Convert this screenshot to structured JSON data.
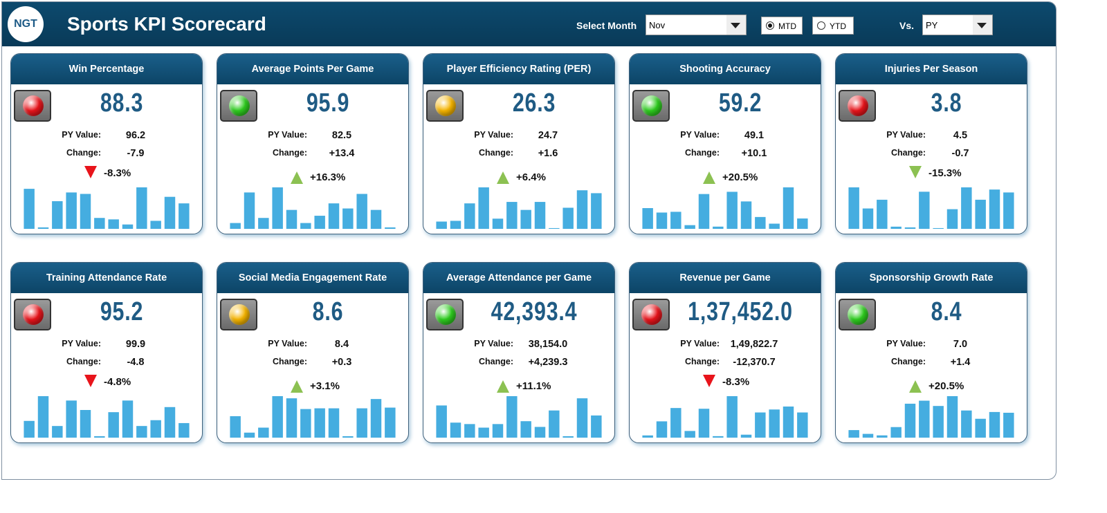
{
  "header": {
    "logo": "NGT",
    "title": "Sports KPI Scorecard",
    "month_label": "Select Month",
    "month": "Nov",
    "modes": [
      "MTD",
      "YTD"
    ],
    "selected_mode": 0,
    "vs_label": "Vs.",
    "vs": "PY"
  },
  "labels": {
    "py": "PY Value:",
    "change": "Change:"
  },
  "cards": [
    {
      "title": "Win Percentage",
      "value": "88.3",
      "py_value": "96.2",
      "change": "-7.9",
      "percent": "-8.3%",
      "light": "#e8141b",
      "arrow": "down",
      "arrow_color": "#e8141b",
      "bars": [
        55,
        2,
        38,
        50,
        48,
        15,
        13,
        6,
        57,
        11,
        44,
        35
      ]
    },
    {
      "title": "Average Points Per Game",
      "value": "95.9",
      "py_value": "82.5",
      "change": "+13.4",
      "percent": "+16.3%",
      "light": "#2ecc1f",
      "arrow": "up",
      "arrow_color": "#8cc152",
      "bars": [
        8,
        50,
        15,
        57,
        26,
        8,
        18,
        35,
        28,
        48,
        26,
        2
      ]
    },
    {
      "title": "Player Efficiency Rating (PER)",
      "value": "26.3",
      "py_value": "24.7",
      "change": "+1.6",
      "percent": "+6.4%",
      "light": "#f5b400",
      "arrow": "up",
      "arrow_color": "#8cc152",
      "bars": [
        10,
        11,
        35,
        57,
        14,
        37,
        26,
        37,
        1,
        29,
        53,
        49
      ]
    },
    {
      "title": "Shooting Accuracy",
      "value": "59.2",
      "py_value": "49.1",
      "change": "+10.1",
      "percent": "+20.5%",
      "light": "#2ecc1f",
      "arrow": "up",
      "arrow_color": "#8cc152",
      "bars": [
        28,
        22,
        23,
        5,
        47,
        3,
        50,
        37,
        16,
        7,
        56,
        14
      ]
    },
    {
      "title": "Injuries Per Season",
      "value": "3.8",
      "py_value": "4.5",
      "change": "-0.7",
      "percent": "-15.3%",
      "light": "#e8141b",
      "arrow": "down",
      "arrow_color": "#8cc152",
      "bars": [
        57,
        28,
        40,
        3,
        2,
        51,
        1,
        27,
        57,
        40,
        54,
        50
      ]
    },
    {
      "title": "Training Attendance Rate",
      "value": "95.2",
      "py_value": "99.9",
      "change": "-4.8",
      "percent": "-4.8%",
      "light": "#e8141b",
      "arrow": "down",
      "arrow_color": "#e8141b",
      "bars": [
        23,
        57,
        16,
        51,
        38,
        2,
        35,
        51,
        16,
        24,
        42,
        20
      ]
    },
    {
      "title": "Social Media Engagement Rate",
      "value": "8.6",
      "py_value": "8.4",
      "change": "+0.3",
      "percent": "+3.1%",
      "light": "#f5b400",
      "arrow": "up",
      "arrow_color": "#8cc152",
      "bars": [
        30,
        7,
        14,
        58,
        55,
        40,
        41,
        41,
        2,
        41,
        54,
        42
      ]
    },
    {
      "title": "Average Attendance per Game",
      "value": "42,393.4",
      "py_value": "38,154.0",
      "change": "+4,239.3",
      "percent": "+11.1%",
      "light": "#2ecc1f",
      "arrow": "up",
      "arrow_color": "#8cc152",
      "bars": [
        45,
        21,
        19,
        14,
        19,
        58,
        23,
        15,
        38,
        2,
        55,
        31
      ]
    },
    {
      "title": "Revenue per Game",
      "value": "1,37,452.0",
      "py_value": "1,49,822.7",
      "change": "-12,370.7",
      "percent": "-8.3%",
      "light": "#e8141b",
      "arrow": "down",
      "arrow_color": "#e8141b",
      "bars": [
        3,
        22,
        40,
        9,
        39,
        2,
        56,
        4,
        34,
        38,
        42,
        34
      ]
    },
    {
      "title": "Sponsorship Growth Rate",
      "value": "8.4",
      "py_value": "7.0",
      "change": "+1.4",
      "percent": "+20.5%",
      "light": "#2ecc1f",
      "arrow": "up",
      "arrow_color": "#8cc152",
      "bars": [
        10,
        5,
        3,
        14,
        45,
        49,
        42,
        55,
        36,
        25,
        34,
        33
      ]
    }
  ]
}
